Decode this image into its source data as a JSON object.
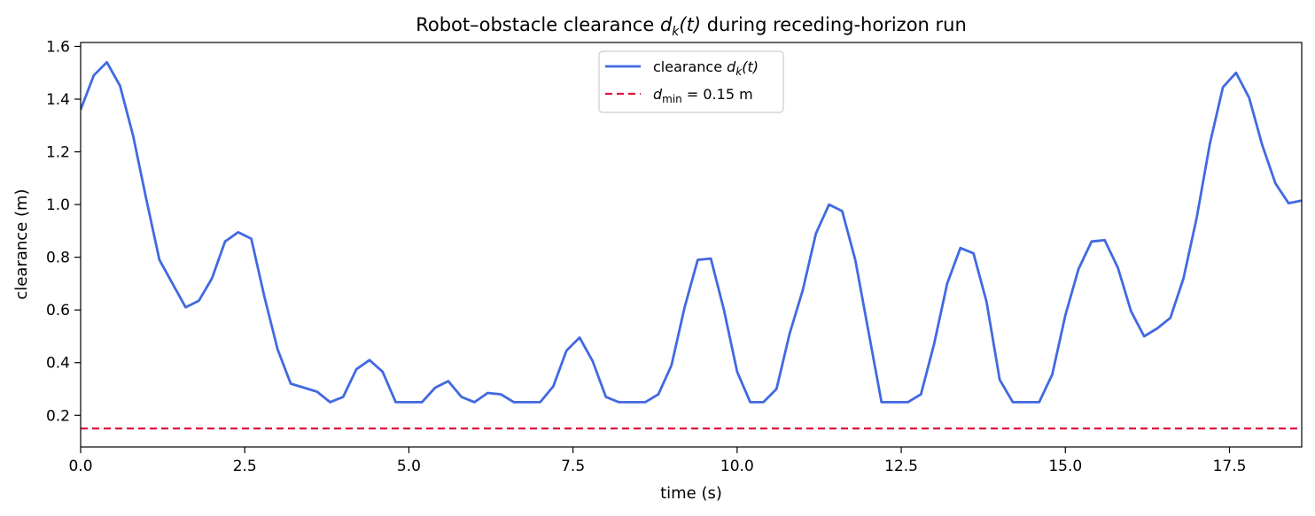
{
  "chart_data": {
    "type": "line",
    "title": "Robot–obstacle clearance  d_k(t)  during receding-horizon run",
    "title_parts": {
      "before": "Robot–obstacle clearance  ",
      "math_var": "d",
      "math_sub": "k",
      "math_arg": "(t)",
      "after": "  during receding-horizon run"
    },
    "xlabel": "time  (s)",
    "ylabel": "clearance  (m)",
    "xlim": [
      0,
      18.6
    ],
    "ylim": [
      0.08,
      1.615
    ],
    "xticks": [
      0,
      2.5,
      5.0,
      7.5,
      10.0,
      12.5,
      15.0,
      17.5
    ],
    "xtick_labels": [
      "0.0",
      "2.5",
      "5.0",
      "7.5",
      "10.0",
      "12.5",
      "15.0",
      "17.5"
    ],
    "yticks": [
      0.2,
      0.4,
      0.6,
      0.8,
      1.0,
      1.2,
      1.4,
      1.6
    ],
    "ytick_labels": [
      "0.2",
      "0.4",
      "0.6",
      "0.8",
      "1.0",
      "1.2",
      "1.4",
      "1.6"
    ],
    "grid": false,
    "legend_position": "top-center",
    "series": [
      {
        "name": "clearance d_k(t)",
        "legend": {
          "prefix": "clearance ",
          "var": "d",
          "sub": "k",
          "arg": "(t)"
        },
        "color": "#4169e1",
        "style": "solid",
        "x": [
          0.0,
          0.2,
          0.4,
          0.6,
          0.8,
          1.0,
          1.2,
          1.4,
          1.6,
          1.8,
          2.0,
          2.2,
          2.4,
          2.6,
          2.8,
          3.0,
          3.2,
          3.4,
          3.6,
          3.8,
          4.0,
          4.2,
          4.4,
          4.6,
          4.8,
          5.0,
          5.2,
          5.4,
          5.6,
          5.8,
          6.0,
          6.2,
          6.4,
          6.6,
          6.8,
          7.0,
          7.2,
          7.4,
          7.6,
          7.8,
          8.0,
          8.2,
          8.4,
          8.6,
          8.8,
          9.0,
          9.2,
          9.4,
          9.6,
          9.8,
          10.0,
          10.2,
          10.4,
          10.6,
          10.8,
          11.0,
          11.2,
          11.4,
          11.6,
          11.8,
          12.0,
          12.2,
          12.4,
          12.6,
          12.8,
          13.0,
          13.2,
          13.4,
          13.6,
          13.8,
          14.0,
          14.2,
          14.4,
          14.6,
          14.8,
          15.0,
          15.2,
          15.4,
          15.6,
          15.8,
          16.0,
          16.2,
          16.4,
          16.6,
          16.8,
          17.0,
          17.2,
          17.4,
          17.6,
          17.8,
          18.0,
          18.2,
          18.4,
          18.6
        ],
        "y": [
          1.36,
          1.49,
          1.54,
          1.45,
          1.26,
          1.02,
          0.79,
          0.7,
          0.61,
          0.635,
          0.72,
          0.86,
          0.895,
          0.87,
          0.65,
          0.45,
          0.32,
          0.305,
          0.29,
          0.25,
          0.27,
          0.375,
          0.41,
          0.365,
          0.25,
          0.25,
          0.25,
          0.305,
          0.33,
          0.27,
          0.25,
          0.285,
          0.28,
          0.25,
          0.25,
          0.25,
          0.31,
          0.445,
          0.495,
          0.405,
          0.27,
          0.25,
          0.25,
          0.25,
          0.28,
          0.39,
          0.61,
          0.79,
          0.795,
          0.6,
          0.365,
          0.25,
          0.25,
          0.3,
          0.51,
          0.675,
          0.89,
          1.0,
          0.975,
          0.79,
          0.52,
          0.25,
          0.25,
          0.25,
          0.28,
          0.47,
          0.7,
          0.835,
          0.815,
          0.63,
          0.335,
          0.25,
          0.25,
          0.25,
          0.355,
          0.58,
          0.755,
          0.86,
          0.865,
          0.76,
          0.595,
          0.5,
          0.53,
          0.57,
          0.72,
          0.95,
          1.23,
          1.445,
          1.5,
          1.405,
          1.225,
          1.08,
          1.005,
          1.015
        ]
      },
      {
        "name": "d_min = 0.15 m",
        "legend": {
          "var": "d",
          "sub": "min",
          "suffix": " = 0.15 m"
        },
        "color": "#dc143c",
        "style": "dashed",
        "hline": 0.15
      }
    ]
  }
}
